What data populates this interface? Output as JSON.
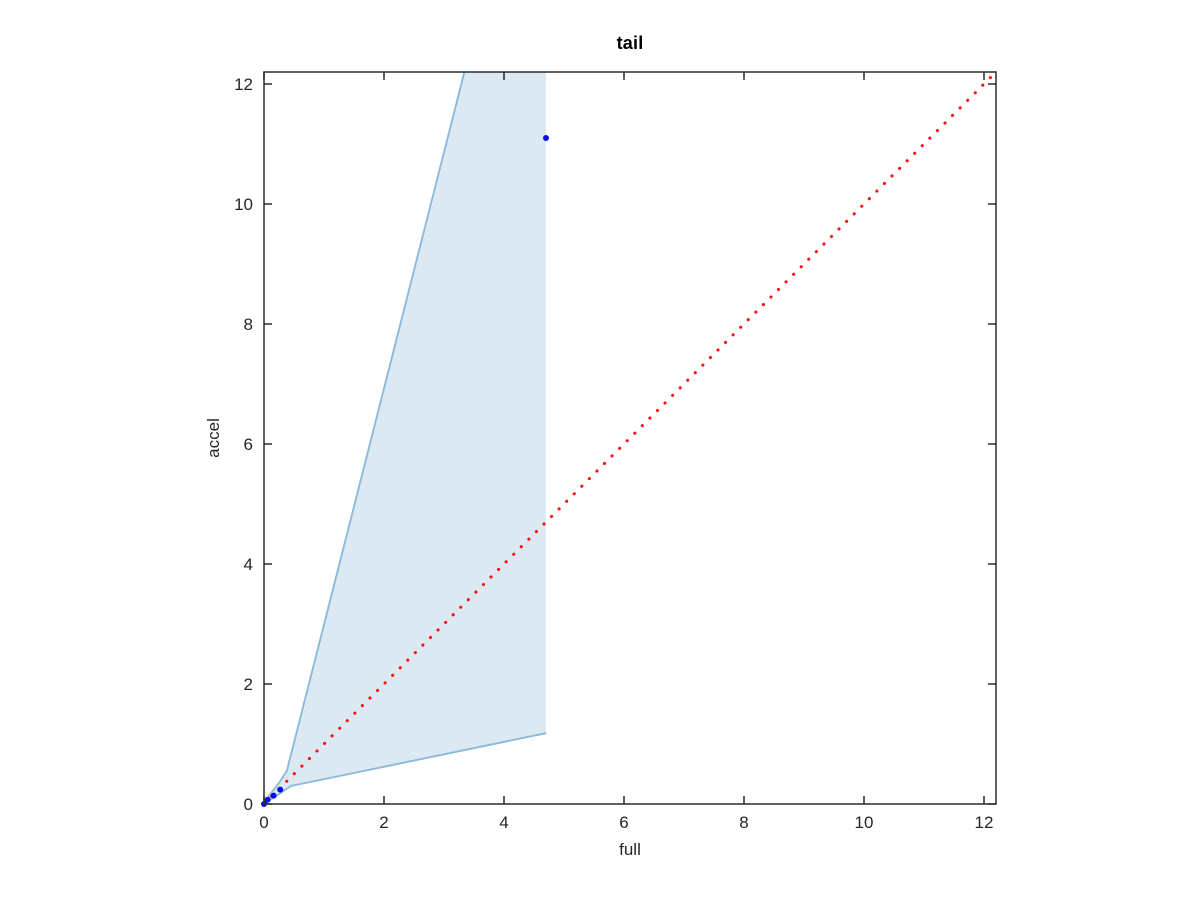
{
  "chart_data": {
    "type": "scatter",
    "title": "tail",
    "xlabel": "full",
    "ylabel": "accel",
    "xlim": [
      0,
      12.2
    ],
    "ylim": [
      0,
      12.2
    ],
    "xticks": [
      0,
      2,
      4,
      6,
      8,
      10,
      12
    ],
    "yticks": [
      0,
      2,
      4,
      6,
      8,
      10,
      12
    ],
    "grid": false,
    "legend": null,
    "box": true,
    "axis_color": "#2b2b2b",
    "series": [
      {
        "name": "prediction-band",
        "type": "band",
        "fill_color": "#dce9f3",
        "edge_color": "#8bbada",
        "upper": [
          [
            0,
            0
          ],
          [
            0.1,
            0.16
          ],
          [
            0.25,
            0.35
          ],
          [
            0.38,
            0.55
          ],
          [
            3.34,
            12.2
          ]
        ],
        "right_x": 4.7,
        "lower": [
          [
            0,
            0
          ],
          [
            0.12,
            0.08
          ],
          [
            0.3,
            0.2
          ],
          [
            0.45,
            0.3
          ],
          [
            4.7,
            1.18
          ]
        ]
      },
      {
        "name": "identity-line",
        "type": "dotted-line",
        "color": "#f41411",
        "points": [
          [
            0,
            0
          ],
          [
            12.2,
            12.2
          ]
        ]
      },
      {
        "name": "observations",
        "type": "scatter",
        "color": "#0a0aee",
        "points": [
          [
            0,
            0
          ],
          [
            0.06,
            0.07
          ],
          [
            0.16,
            0.14
          ],
          [
            0.27,
            0.24
          ],
          [
            4.7,
            11.1
          ]
        ]
      }
    ]
  }
}
